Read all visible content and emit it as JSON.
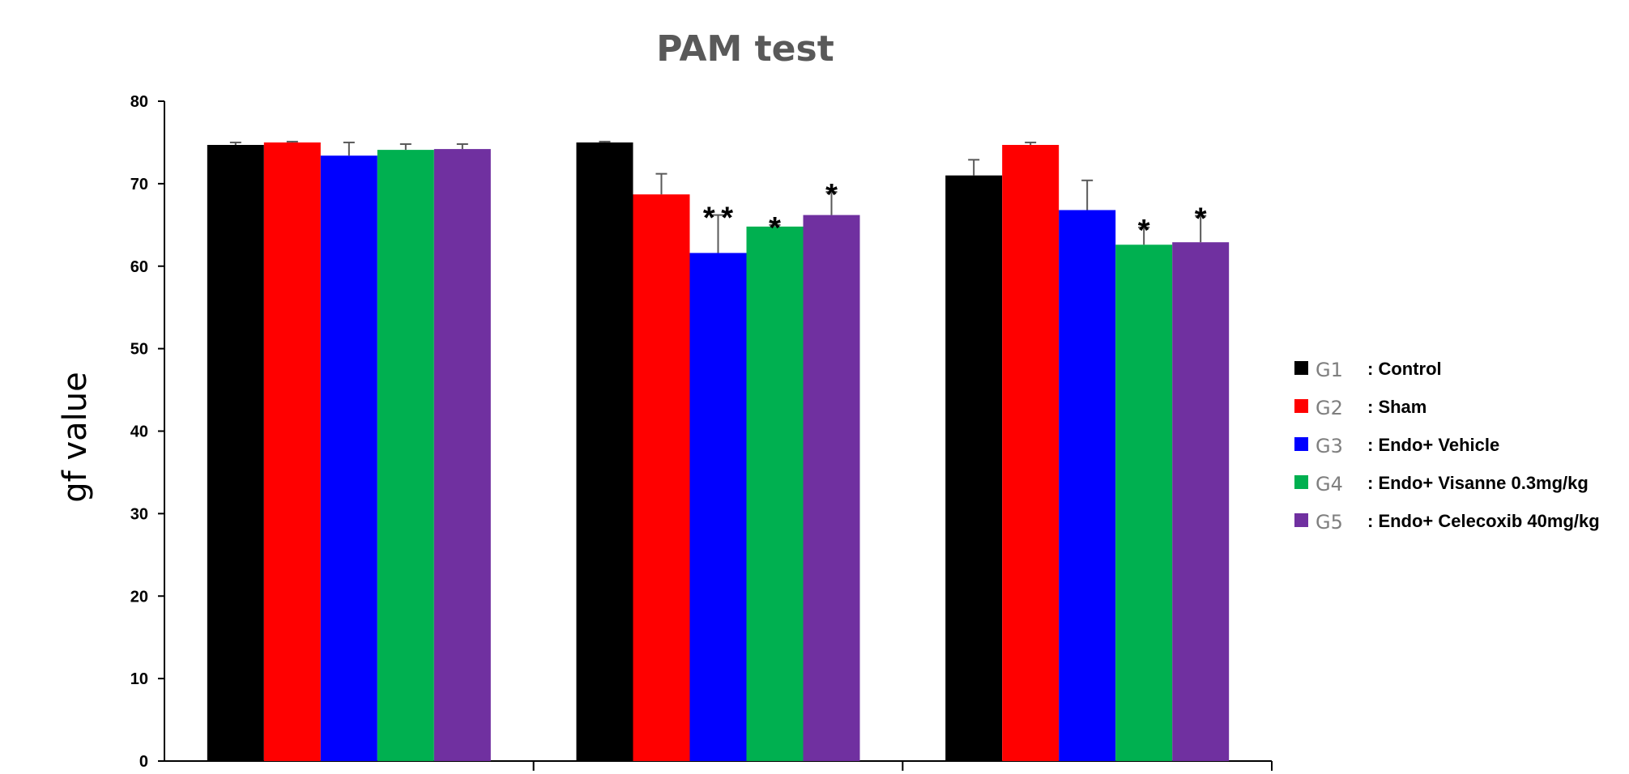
{
  "chart_data": {
    "type": "bar",
    "title": "PAM test",
    "ylabel": "gf value",
    "xlabel": "",
    "ylim": [
      0,
      80
    ],
    "yticks": [
      0,
      10,
      20,
      30,
      40,
      50,
      60,
      70,
      80
    ],
    "categories": [
      "",
      "",
      ""
    ],
    "series": [
      {
        "name": "G1",
        "description": ": Control",
        "color": "#000000",
        "values": [
          74.7,
          75.0,
          71.0
        ],
        "errors": [
          0.3,
          0.1,
          1.9
        ],
        "significance": [
          "",
          "",
          ""
        ]
      },
      {
        "name": "G2",
        "description": ": Sham",
        "color": "#ff0000",
        "values": [
          75.0,
          68.7,
          74.7
        ],
        "errors": [
          0.1,
          2.5,
          0.3
        ],
        "significance": [
          "",
          "",
          ""
        ]
      },
      {
        "name": "G3",
        "description": ": Endo+ Vehicle",
        "color": "#0000ff",
        "values": [
          73.4,
          61.6,
          66.8
        ],
        "errors": [
          1.6,
          4.6,
          3.6
        ],
        "significance": [
          "",
          "**",
          ""
        ]
      },
      {
        "name": "G4",
        "description": ": Endo+ Visanne 0.3mg/kg",
        "color": "#00b050",
        "values": [
          74.1,
          64.8,
          62.6
        ],
        "errors": [
          0.7,
          0.2,
          2.1
        ],
        "significance": [
          "",
          "*",
          "*"
        ]
      },
      {
        "name": "G5",
        "description": ": Endo+ Celecoxib 40mg/kg",
        "color": "#7030a0",
        "values": [
          74.2,
          66.2,
          62.9
        ],
        "errors": [
          0.6,
          2.8,
          3.2
        ],
        "significance": [
          "",
          "*",
          "*"
        ]
      }
    ],
    "grid": false,
    "legend_position": "right"
  }
}
